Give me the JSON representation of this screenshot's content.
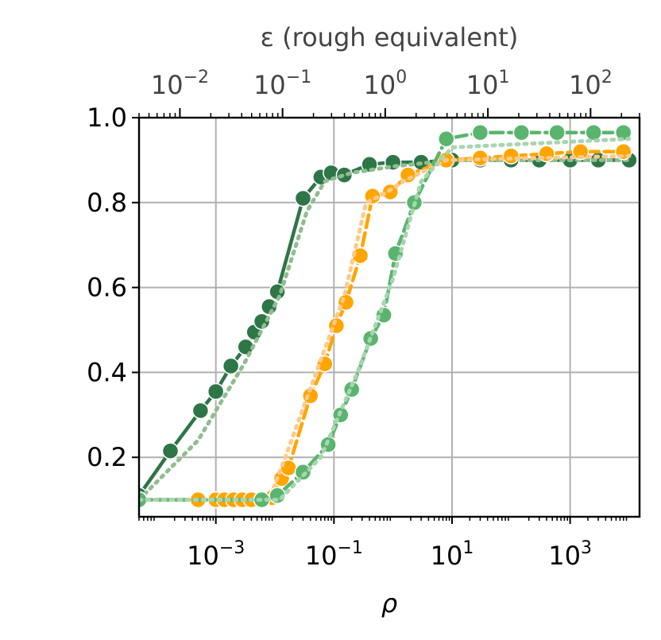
{
  "chart_data": {
    "type": "line",
    "xlabel": "ρ",
    "ylabel": "",
    "top_xlabel": "ε (rough equivalent)",
    "x_scale": "log",
    "xlim": [
      5e-05,
      15000
    ],
    "ylim": [
      0.06,
      1.0
    ],
    "x_ticks": [
      {
        "value": 0.001,
        "base": "10",
        "exp": "−3"
      },
      {
        "value": 0.1,
        "base": "10",
        "exp": "−1"
      },
      {
        "value": 10,
        "base": "10",
        "exp": "1"
      },
      {
        "value": 1000,
        "base": "10",
        "exp": "3"
      }
    ],
    "y_ticks": [
      {
        "value": 0.2,
        "label": "0.2"
      },
      {
        "value": 0.4,
        "label": "0.4"
      },
      {
        "value": 0.6,
        "label": "0.6"
      },
      {
        "value": 0.8,
        "label": "0.8"
      },
      {
        "value": 1.0,
        "label": "1.0"
      }
    ],
    "top_axis": {
      "scale": "log",
      "lim": [
        0.004,
        300
      ],
      "ticks": [
        {
          "value": 0.01,
          "base": "10",
          "exp": "−2"
        },
        {
          "value": 0.1,
          "base": "10",
          "exp": "−1"
        },
        {
          "value": 1,
          "base": "10",
          "exp": "0"
        },
        {
          "value": 10,
          "base": "10",
          "exp": "1"
        },
        {
          "value": 100,
          "base": "10",
          "exp": "2"
        }
      ]
    },
    "grid": true,
    "series": [
      {
        "color": "#2e7548",
        "line_style": "solid",
        "markers": true,
        "points": [
          [
            5e-05,
            0.11
          ],
          [
            0.00017,
            0.215
          ],
          [
            0.00055,
            0.31
          ],
          [
            0.001,
            0.355
          ],
          [
            0.0018,
            0.415
          ],
          [
            0.0032,
            0.46
          ],
          [
            0.0045,
            0.495
          ],
          [
            0.006,
            0.52
          ],
          [
            0.008,
            0.555
          ],
          [
            0.011,
            0.59
          ],
          [
            0.03,
            0.81
          ],
          [
            0.06,
            0.86
          ],
          [
            0.09,
            0.87
          ],
          [
            0.15,
            0.865
          ],
          [
            0.4,
            0.89
          ],
          [
            1,
            0.895
          ],
          [
            3,
            0.895
          ],
          [
            10,
            0.9
          ],
          [
            30,
            0.9
          ],
          [
            100,
            0.9
          ],
          [
            300,
            0.9
          ],
          [
            1000,
            0.9
          ],
          [
            3000,
            0.9
          ],
          [
            10000,
            0.9
          ]
        ]
      },
      {
        "color": "#90bd90",
        "line_style": "dotted",
        "markers": false,
        "points": [
          [
            5e-05,
            0.1
          ],
          [
            0.0005,
            0.24
          ],
          [
            0.003,
            0.42
          ],
          [
            0.012,
            0.58
          ],
          [
            0.035,
            0.78
          ],
          [
            0.07,
            0.85
          ],
          [
            0.2,
            0.87
          ],
          [
            1,
            0.885
          ],
          [
            10,
            0.9
          ],
          [
            10000,
            0.9
          ]
        ]
      },
      {
        "color": "#ffa500",
        "line_style": "dashed",
        "markers": true,
        "points": [
          [
            5e-05,
            0.1
          ],
          [
            0.0005,
            0.1
          ],
          [
            0.001,
            0.1
          ],
          [
            0.0014,
            0.1
          ],
          [
            0.002,
            0.1
          ],
          [
            0.0028,
            0.1
          ],
          [
            0.004,
            0.1
          ],
          [
            0.006,
            0.1
          ],
          [
            0.009,
            0.105
          ],
          [
            0.013,
            0.15
          ],
          [
            0.017,
            0.175
          ],
          [
            0.04,
            0.345
          ],
          [
            0.07,
            0.42
          ],
          [
            0.11,
            0.51
          ],
          [
            0.16,
            0.565
          ],
          [
            0.28,
            0.675
          ],
          [
            0.45,
            0.815
          ],
          [
            0.9,
            0.825
          ],
          [
            1.8,
            0.865
          ],
          [
            8,
            0.9
          ],
          [
            30,
            0.905
          ],
          [
            100,
            0.91
          ],
          [
            400,
            0.915
          ],
          [
            1500,
            0.92
          ],
          [
            8000,
            0.92
          ]
        ]
      },
      {
        "color": "#ffc98a",
        "line_style": "dotted",
        "markers": false,
        "points": [
          [
            5e-05,
            0.1
          ],
          [
            0.008,
            0.1
          ],
          [
            0.015,
            0.2
          ],
          [
            0.05,
            0.4
          ],
          [
            0.15,
            0.58
          ],
          [
            0.35,
            0.8
          ],
          [
            0.7,
            0.82
          ],
          [
            1.5,
            0.85
          ],
          [
            8,
            0.9
          ],
          [
            10000,
            0.91
          ]
        ]
      },
      {
        "color": "#5ab46e",
        "line_style": "dashed",
        "markers": true,
        "points": [
          [
            5e-05,
            0.1
          ],
          [
            0.006,
            0.1
          ],
          [
            0.011,
            0.11
          ],
          [
            0.03,
            0.165
          ],
          [
            0.08,
            0.23
          ],
          [
            0.13,
            0.3
          ],
          [
            0.2,
            0.36
          ],
          [
            0.42,
            0.48
          ],
          [
            0.7,
            0.535
          ],
          [
            1.1,
            0.68
          ],
          [
            2.3,
            0.8
          ],
          [
            8,
            0.95
          ],
          [
            30,
            0.965
          ],
          [
            150,
            0.965
          ],
          [
            600,
            0.965
          ],
          [
            2500,
            0.965
          ],
          [
            8000,
            0.965
          ]
        ]
      },
      {
        "color": "#a8d5b0",
        "line_style": "dotted",
        "markers": false,
        "points": [
          [
            5e-05,
            0.1
          ],
          [
            0.012,
            0.1
          ],
          [
            0.06,
            0.2
          ],
          [
            0.25,
            0.4
          ],
          [
            1,
            0.62
          ],
          [
            3,
            0.85
          ],
          [
            10,
            0.93
          ],
          [
            10000,
            0.95
          ]
        ]
      }
    ]
  }
}
